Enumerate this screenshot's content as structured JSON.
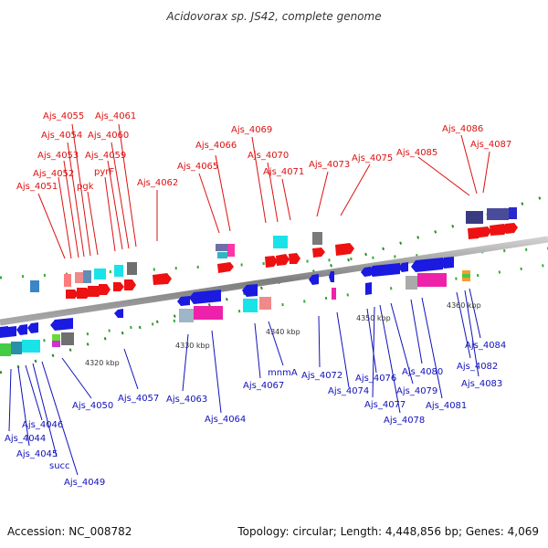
{
  "title": "Acidovorax sp. JS42, complete genome",
  "footer": {
    "accession": "Accession: NC_008782",
    "summary": "Topology: circular; Length: 4,448,856 bp; Genes: 4,069"
  },
  "ticks": [
    "4320 kbp",
    "4330 kbp",
    "4340 kbp",
    "4350 kbp",
    "4360 kbp"
  ],
  "colors": {
    "forward_label": "#dd1111",
    "reverse_label": "#1111bb",
    "forward_arrow": "#ee1111",
    "reverse_arrow": "#1a1ae0",
    "backbone": "#8a8a8a",
    "tick_marks": "#2a8a2a"
  },
  "forward_labels": [
    "Ajs_4051",
    "Ajs_4052",
    "Ajs_4053",
    "Ajs_4054",
    "Ajs_4055",
    "pgk",
    "pyrF",
    "Ajs_4059",
    "Ajs_4060",
    "Ajs_4061",
    "Ajs_4062",
    "Ajs_4065",
    "Ajs_4066",
    "Ajs_4069",
    "Ajs_4070",
    "Ajs_4071",
    "Ajs_4073",
    "Ajs_4075",
    "Ajs_4085",
    "Ajs_4086",
    "Ajs_4087"
  ],
  "reverse_labels": [
    "Ajs_4046",
    "Ajs_4044",
    "Ajs_4045",
    "succ",
    "Ajs_4049",
    "Ajs_4050",
    "Ajs_4057",
    "Ajs_4063",
    "Ajs_4064",
    "Ajs_4067",
    "mnmA",
    "Ajs_4072",
    "Ajs_4074",
    "Ajs_4076",
    "Ajs_4077",
    "Ajs_4078",
    "Ajs_4079",
    "Ajs_4080",
    "Ajs_4081",
    "Ajs_4082",
    "Ajs_4083",
    "Ajs_4084"
  ]
}
